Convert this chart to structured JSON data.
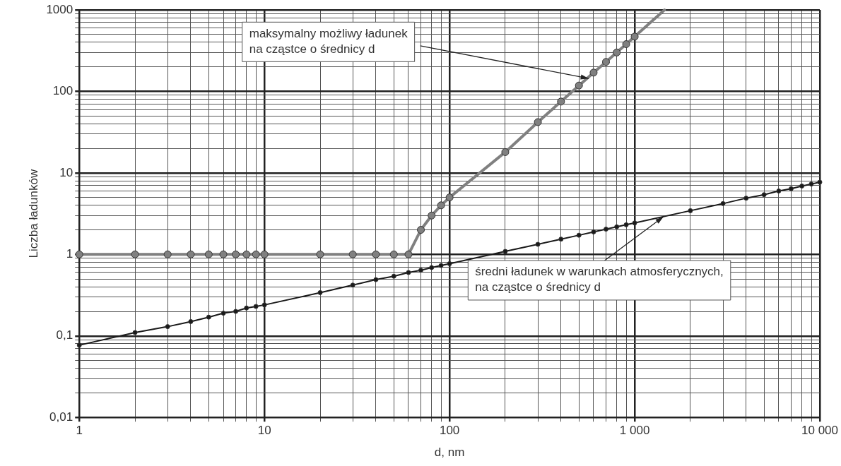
{
  "chart_data": {
    "type": "line",
    "xlabel": "d, nm",
    "ylabel": "Liczba ładunków",
    "log": "xy",
    "grid": true,
    "legend": false,
    "marker": "circle",
    "line_style": "solid",
    "xlim": [
      1,
      10000
    ],
    "ylim": [
      0.01,
      1000
    ],
    "xticks": [
      1,
      {
        "value": 2,
        "label": null
      },
      {
        "value": 3,
        "label": null
      },
      {
        "value": 4,
        "label": null
      },
      {
        "value": 5,
        "label": null
      },
      {
        "value": 6,
        "label": null
      },
      {
        "value": 7,
        "label": null
      },
      {
        "value": 8,
        "label": null
      },
      {
        "value": 9,
        "label": null
      },
      10,
      {
        "value": 20,
        "label": null
      },
      {
        "value": 30,
        "label": null
      },
      {
        "value": 40,
        "label": null
      },
      {
        "value": 50,
        "label": null
      },
      {
        "value": 60,
        "label": null
      },
      {
        "value": 70,
        "label": null
      },
      {
        "value": 80,
        "label": null
      },
      {
        "value": 90,
        "label": null
      },
      100,
      {
        "value": 200,
        "label": null
      },
      {
        "value": 300,
        "label": null
      },
      {
        "value": 400,
        "label": null
      },
      {
        "value": 500,
        "label": null
      },
      {
        "value": 600,
        "label": null
      },
      {
        "value": 700,
        "label": null
      },
      {
        "value": 800,
        "label": null
      },
      {
        "value": 900,
        "label": null
      },
      {
        "value": 1000,
        "label": "1 000"
      },
      {
        "value": 2000,
        "label": null
      },
      {
        "value": 3000,
        "label": null
      },
      {
        "value": 4000,
        "label": null
      },
      {
        "value": 5000,
        "label": null
      },
      {
        "value": 6000,
        "label": null
      },
      {
        "value": 7000,
        "label": null
      },
      {
        "value": 8000,
        "label": null
      },
      {
        "value": 9000,
        "label": null
      },
      {
        "value": 10000,
        "label": "10 000"
      }
    ],
    "yticks": [
      {
        "value": 0.01,
        "label": "0,01"
      },
      {
        "value": 0.02,
        "label": null
      },
      {
        "value": 0.03,
        "label": null
      },
      {
        "value": 0.04,
        "label": null
      },
      {
        "value": 0.05,
        "label": null
      },
      {
        "value": 0.06,
        "label": null
      },
      {
        "value": 0.07,
        "label": null
      },
      {
        "value": 0.08,
        "label": null
      },
      {
        "value": 0.09,
        "label": null
      },
      {
        "value": 0.1,
        "label": "0,1"
      },
      {
        "value": 0.2,
        "label": null
      },
      {
        "value": 0.3,
        "label": null
      },
      {
        "value": 0.4,
        "label": null
      },
      {
        "value": 0.5,
        "label": null
      },
      {
        "value": 0.6,
        "label": null
      },
      {
        "value": 0.7,
        "label": null
      },
      {
        "value": 0.8,
        "label": null
      },
      {
        "value": 0.9,
        "label": null
      },
      1,
      {
        "value": 2,
        "label": null
      },
      {
        "value": 3,
        "label": null
      },
      {
        "value": 4,
        "label": null
      },
      {
        "value": 5,
        "label": null
      },
      {
        "value": 6,
        "label": null
      },
      {
        "value": 7,
        "label": null
      },
      {
        "value": 8,
        "label": null
      },
      {
        "value": 9,
        "label": null
      },
      10,
      {
        "value": 20,
        "label": null
      },
      {
        "value": 30,
        "label": null
      },
      {
        "value": 40,
        "label": null
      },
      {
        "value": 50,
        "label": null
      },
      {
        "value": 60,
        "label": null
      },
      {
        "value": 70,
        "label": null
      },
      {
        "value": 80,
        "label": null
      },
      {
        "value": 90,
        "label": null
      },
      100,
      {
        "value": 200,
        "label": null
      },
      {
        "value": 300,
        "label": null
      },
      {
        "value": 400,
        "label": null
      },
      {
        "value": 500,
        "label": null
      },
      {
        "value": 600,
        "label": null
      },
      {
        "value": 700,
        "label": null
      },
      {
        "value": 800,
        "label": null
      },
      {
        "value": 900,
        "label": null
      },
      1000
    ],
    "series": [
      {
        "color": "#808080",
        "x": [
          1,
          2,
          3,
          4,
          5,
          6,
          7,
          8,
          9,
          10,
          20,
          30,
          40,
          50,
          60,
          70,
          80,
          90,
          100,
          200,
          300,
          400,
          500,
          600,
          700,
          800,
          900,
          1000
        ],
        "values": [
          1,
          1,
          1,
          1,
          1,
          1,
          1,
          1,
          1,
          1,
          1,
          1,
          1,
          1,
          1,
          2,
          3,
          4,
          5,
          18,
          42,
          75,
          118,
          170,
          230,
          300,
          380,
          470
        ]
      },
      {
        "color": "#808080",
        "marker": "none",
        "x": [
          1000,
          1450
        ],
        "values": [
          470,
          1000
        ]
      },
      {
        "color": "#1a1a1a",
        "x": [
          1,
          2,
          3,
          4,
          5,
          6,
          7,
          8,
          9,
          10,
          20,
          30,
          40,
          50,
          60,
          70,
          80,
          90,
          100,
          200,
          300,
          400,
          500,
          600,
          700,
          800,
          900,
          1000,
          2000,
          3000,
          4000,
          5000,
          6000,
          7000,
          8000,
          9000,
          10000
        ],
        "values": [
          0.077,
          0.11,
          0.13,
          0.15,
          0.17,
          0.19,
          0.2,
          0.22,
          0.23,
          0.24,
          0.34,
          0.42,
          0.49,
          0.54,
          0.6,
          0.64,
          0.69,
          0.73,
          0.77,
          1.09,
          1.33,
          1.54,
          1.72,
          1.89,
          2.04,
          2.18,
          2.31,
          2.43,
          3.44,
          4.2,
          4.9,
          5.4,
          6.0,
          6.4,
          6.9,
          7.3,
          7.7
        ]
      }
    ],
    "annotations": [
      {
        "text": "maksymalny możliwy ładunek\nna cząstce o średnicy d",
        "x": 565,
        "y": 144
      },
      {
        "text": "średni ładunek w warunkach atmosferycznych,\nna cząstce o średnicy d",
        "x": 1430,
        "y": 2.9
      }
    ]
  }
}
